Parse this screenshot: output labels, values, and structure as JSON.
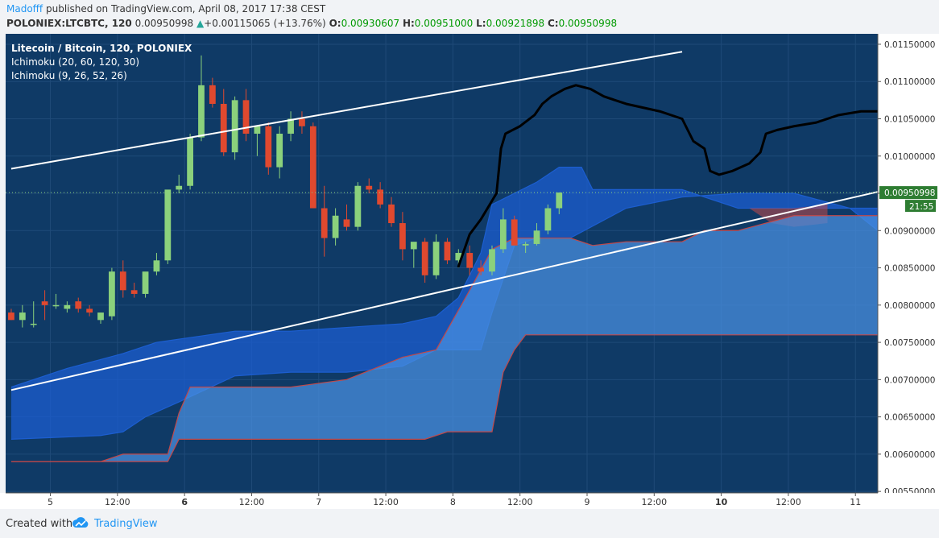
{
  "header": {
    "author": "Madofff",
    "published": "published on TradingView.com, April 08, 2017 17:38 CEST",
    "symbol": "POLONIEX:LTCBTC, 120",
    "last": "0.00950998",
    "change": "+0.00115065 (+13.76%)",
    "o_label": "O:",
    "o_value": "0.00930607",
    "h_label": "H:",
    "h_value": "0.00951000",
    "l_label": "L:",
    "l_value": "0.00921898",
    "c_label": "C:",
    "c_value": "0.00950998"
  },
  "legend": {
    "title": "Litecoin / Bitcoin, 120, POLONIEX",
    "ind1": "Ichimoku (20, 60, 120, 30)",
    "ind2": "Ichimoku (9, 26, 52, 26)"
  },
  "footer": {
    "created": "Created with",
    "brand": "TradingView"
  },
  "colors": {
    "background": "#0f3a66",
    "up_candle": "#8bd17c",
    "down_candle": "#e0492f",
    "cloud_light": "#4a90e2",
    "cloud_dark": "#1c5ed0",
    "cloud_red": "#c24848",
    "trendline": "#ffffff",
    "drawing": "#000000",
    "price_tag": "#2e7d32"
  },
  "chart_data": {
    "type": "candlestick",
    "y_ticks": [
      "0.01150000",
      "0.01100000",
      "0.01050000",
      "0.01000000",
      "0.00950000",
      "0.00900000",
      "0.00850000",
      "0.00800000",
      "0.00750000",
      "0.00700000",
      "0.00650000",
      "0.00600000",
      "0.00550000"
    ],
    "ylim": [
      0.00548,
      0.01164
    ],
    "x_ticks": [
      {
        "label": "5",
        "x": 3.5,
        "bold": false
      },
      {
        "label": "12:00",
        "x": 9.5,
        "bold": false
      },
      {
        "label": "6",
        "x": 15.5,
        "bold": true
      },
      {
        "label": "12:00",
        "x": 21.5,
        "bold": false
      },
      {
        "label": "7",
        "x": 27.5,
        "bold": false
      },
      {
        "label": "12:00",
        "x": 33.5,
        "bold": false
      },
      {
        "label": "8",
        "x": 39.5,
        "bold": false
      },
      {
        "label": "12:00",
        "x": 45.5,
        "bold": false
      },
      {
        "label": "9",
        "x": 51.5,
        "bold": false
      },
      {
        "label": "12:00",
        "x": 57.5,
        "bold": false
      },
      {
        "label": "10",
        "x": 63.5,
        "bold": true
      },
      {
        "label": "12:00",
        "x": 69.5,
        "bold": false
      },
      {
        "label": "11",
        "x": 75.5,
        "bold": false
      }
    ],
    "x_range": [
      -0.5,
      77.5
    ],
    "last_price": "0.00950998",
    "countdown": "21:55",
    "candles": [
      [
        0.0079,
        0.00795,
        0.0078,
        0.0078
      ],
      [
        0.0078,
        0.008,
        0.0077,
        0.0079
      ],
      [
        0.00775,
        0.00805,
        0.0077,
        0.00775
      ],
      [
        0.00805,
        0.0082,
        0.0078,
        0.008
      ],
      [
        0.008,
        0.00815,
        0.00795,
        0.008
      ],
      [
        0.00795,
        0.00805,
        0.0079,
        0.008
      ],
      [
        0.00805,
        0.0081,
        0.0079,
        0.00795
      ],
      [
        0.00795,
        0.008,
        0.00785,
        0.0079
      ],
      [
        0.0078,
        0.0079,
        0.00775,
        0.0079
      ],
      [
        0.00785,
        0.0085,
        0.0078,
        0.00845
      ],
      [
        0.00845,
        0.0086,
        0.0081,
        0.0082
      ],
      [
        0.0082,
        0.0083,
        0.0081,
        0.00815
      ],
      [
        0.00815,
        0.0084,
        0.0081,
        0.00845
      ],
      [
        0.00845,
        0.0087,
        0.0084,
        0.0086
      ],
      [
        0.0086,
        0.0095,
        0.00855,
        0.00955
      ],
      [
        0.00955,
        0.00975,
        0.0095,
        0.0096
      ],
      [
        0.0096,
        0.0103,
        0.00955,
        0.01025
      ],
      [
        0.01025,
        0.01135,
        0.0102,
        0.01095
      ],
      [
        0.01095,
        0.01105,
        0.01065,
        0.0107
      ],
      [
        0.0107,
        0.0109,
        0.01,
        0.01005
      ],
      [
        0.01005,
        0.0108,
        0.00995,
        0.01075
      ],
      [
        0.01075,
        0.0109,
        0.0102,
        0.0103
      ],
      [
        0.0103,
        0.0104,
        0.01,
        0.0104
      ],
      [
        0.0104,
        0.01045,
        0.00975,
        0.00985
      ],
      [
        0.00985,
        0.0104,
        0.0097,
        0.0103
      ],
      [
        0.0103,
        0.0106,
        0.0102,
        0.0105
      ],
      [
        0.0105,
        0.0106,
        0.0103,
        0.0104
      ],
      [
        0.0104,
        0.01045,
        0.0093,
        0.0093
      ],
      [
        0.0093,
        0.0096,
        0.00865,
        0.0089
      ],
      [
        0.0089,
        0.0093,
        0.0088,
        0.0092
      ],
      [
        0.00915,
        0.00935,
        0.009,
        0.00905
      ],
      [
        0.00905,
        0.00965,
        0.009,
        0.0096
      ],
      [
        0.0096,
        0.0097,
        0.0095,
        0.00955
      ],
      [
        0.00955,
        0.00965,
        0.0093,
        0.00935
      ],
      [
        0.00935,
        0.00945,
        0.00905,
        0.0091
      ],
      [
        0.0091,
        0.00925,
        0.0086,
        0.00875
      ],
      [
        0.00875,
        0.0088,
        0.0085,
        0.00885
      ],
      [
        0.00885,
        0.0089,
        0.0083,
        0.0084
      ],
      [
        0.0084,
        0.00895,
        0.00835,
        0.00885
      ],
      [
        0.00885,
        0.0089,
        0.00855,
        0.0086
      ],
      [
        0.0086,
        0.00875,
        0.0085,
        0.0087
      ],
      [
        0.0087,
        0.0088,
        0.0084,
        0.0085
      ],
      [
        0.0085,
        0.0086,
        0.0084,
        0.00845
      ],
      [
        0.00845,
        0.0088,
        0.0084,
        0.00875
      ],
      [
        0.00875,
        0.0093,
        0.0087,
        0.00915
      ],
      [
        0.00915,
        0.0092,
        0.0088,
        0.0088
      ],
      [
        0.0088,
        0.00885,
        0.0087,
        0.00882
      ],
      [
        0.00882,
        0.0091,
        0.0088,
        0.009
      ],
      [
        0.009,
        0.00935,
        0.00895,
        0.0093
      ],
      [
        0.0093,
        0.00951,
        0.00922,
        0.00951
      ]
    ],
    "ichi_a": {
      "span_a": [
        [
          0,
          0.0069
        ],
        [
          5,
          0.00715
        ],
        [
          10,
          0.00735
        ],
        [
          13,
          0.0075
        ],
        [
          20,
          0.00765
        ],
        [
          25,
          0.00765
        ],
        [
          30,
          0.0077
        ],
        [
          35,
          0.00775
        ],
        [
          38,
          0.00785
        ],
        [
          40,
          0.0081
        ],
        [
          42,
          0.0087
        ],
        [
          43,
          0.00935
        ],
        [
          45,
          0.0095
        ],
        [
          47,
          0.00965
        ],
        [
          49,
          0.00985
        ],
        [
          51,
          0.00985
        ],
        [
          52,
          0.00955
        ],
        [
          55,
          0.00955
        ],
        [
          60,
          0.00955
        ],
        [
          62,
          0.00945
        ],
        [
          65,
          0.0093
        ],
        [
          70,
          0.0093
        ],
        [
          75,
          0.0093
        ],
        [
          77.5,
          0.0093
        ]
      ],
      "span_b": [
        [
          0,
          0.0062
        ],
        [
          8,
          0.00625
        ],
        [
          10,
          0.0063
        ],
        [
          12,
          0.0065
        ],
        [
          15,
          0.0067
        ],
        [
          20,
          0.00705
        ],
        [
          25,
          0.0071
        ],
        [
          30,
          0.0071
        ],
        [
          35,
          0.00718
        ],
        [
          38,
          0.0074
        ],
        [
          42,
          0.0074
        ],
        [
          43,
          0.0079
        ],
        [
          45,
          0.0088
        ],
        [
          47,
          0.0089
        ],
        [
          50,
          0.0089
        ],
        [
          55,
          0.0093
        ],
        [
          60,
          0.00945
        ],
        [
          65,
          0.0095
        ],
        [
          70,
          0.0095
        ],
        [
          75,
          0.0093
        ],
        [
          77.5,
          0.009
        ]
      ]
    },
    "ichi_b": {
      "span_a": [
        [
          0,
          0.0059
        ],
        [
          8,
          0.0059
        ],
        [
          10,
          0.006
        ],
        [
          14,
          0.006
        ],
        [
          15,
          0.00655
        ],
        [
          16,
          0.0069
        ],
        [
          25,
          0.0069
        ],
        [
          30,
          0.007
        ],
        [
          33,
          0.00718
        ],
        [
          35,
          0.0073
        ],
        [
          38,
          0.0074
        ],
        [
          41,
          0.0082
        ],
        [
          43,
          0.00875
        ],
        [
          45,
          0.0089
        ],
        [
          50,
          0.0089
        ],
        [
          52,
          0.0088
        ],
        [
          55,
          0.00885
        ],
        [
          60,
          0.00885
        ],
        [
          62,
          0.009
        ],
        [
          65,
          0.009
        ],
        [
          70,
          0.0092
        ],
        [
          75,
          0.0092
        ],
        [
          77.5,
          0.0092
        ]
      ],
      "span_b": [
        [
          0,
          0.0059
        ],
        [
          14,
          0.0059
        ],
        [
          15,
          0.0062
        ],
        [
          25,
          0.0062
        ],
        [
          30,
          0.0062
        ],
        [
          37,
          0.0062
        ],
        [
          39,
          0.0063
        ],
        [
          43,
          0.0063
        ],
        [
          44,
          0.0071
        ],
        [
          45,
          0.0074
        ],
        [
          46,
          0.0076
        ],
        [
          55,
          0.0076
        ],
        [
          60,
          0.0076
        ],
        [
          65,
          0.0076
        ],
        [
          77.5,
          0.0076
        ]
      ]
    },
    "trendlines": [
      {
        "x1": 0,
        "y1": 0.00983,
        "x2": 60,
        "y2": 0.0114
      },
      {
        "x1": 0,
        "y1": 0.00686,
        "x2": 77.5,
        "y2": 0.00952
      }
    ],
    "drawing": [
      [
        40,
        0.00852
      ],
      [
        41,
        0.00895
      ],
      [
        42,
        0.00915
      ],
      [
        42.8,
        0.00935
      ],
      [
        43.4,
        0.0095
      ],
      [
        43.8,
        0.0101
      ],
      [
        44.2,
        0.0103
      ],
      [
        45.5,
        0.0104
      ],
      [
        46.8,
        0.01055
      ],
      [
        47.5,
        0.0107
      ],
      [
        48.3,
        0.0108
      ],
      [
        49.5,
        0.0109
      ],
      [
        50.5,
        0.01095
      ],
      [
        51.8,
        0.0109
      ],
      [
        53,
        0.0108
      ],
      [
        55,
        0.0107
      ],
      [
        58,
        0.0106
      ],
      [
        60,
        0.0105
      ],
      [
        61,
        0.0102
      ],
      [
        62,
        0.0101
      ],
      [
        62.5,
        0.0098
      ],
      [
        63.3,
        0.00975
      ],
      [
        64.5,
        0.0098
      ],
      [
        66,
        0.0099
      ],
      [
        67,
        0.01005
      ],
      [
        67.5,
        0.0103
      ],
      [
        68.5,
        0.01035
      ],
      [
        70,
        0.0104
      ],
      [
        72,
        0.01045
      ],
      [
        74,
        0.01055
      ],
      [
        76,
        0.0106
      ],
      [
        77.5,
        0.0106
      ]
    ]
  }
}
